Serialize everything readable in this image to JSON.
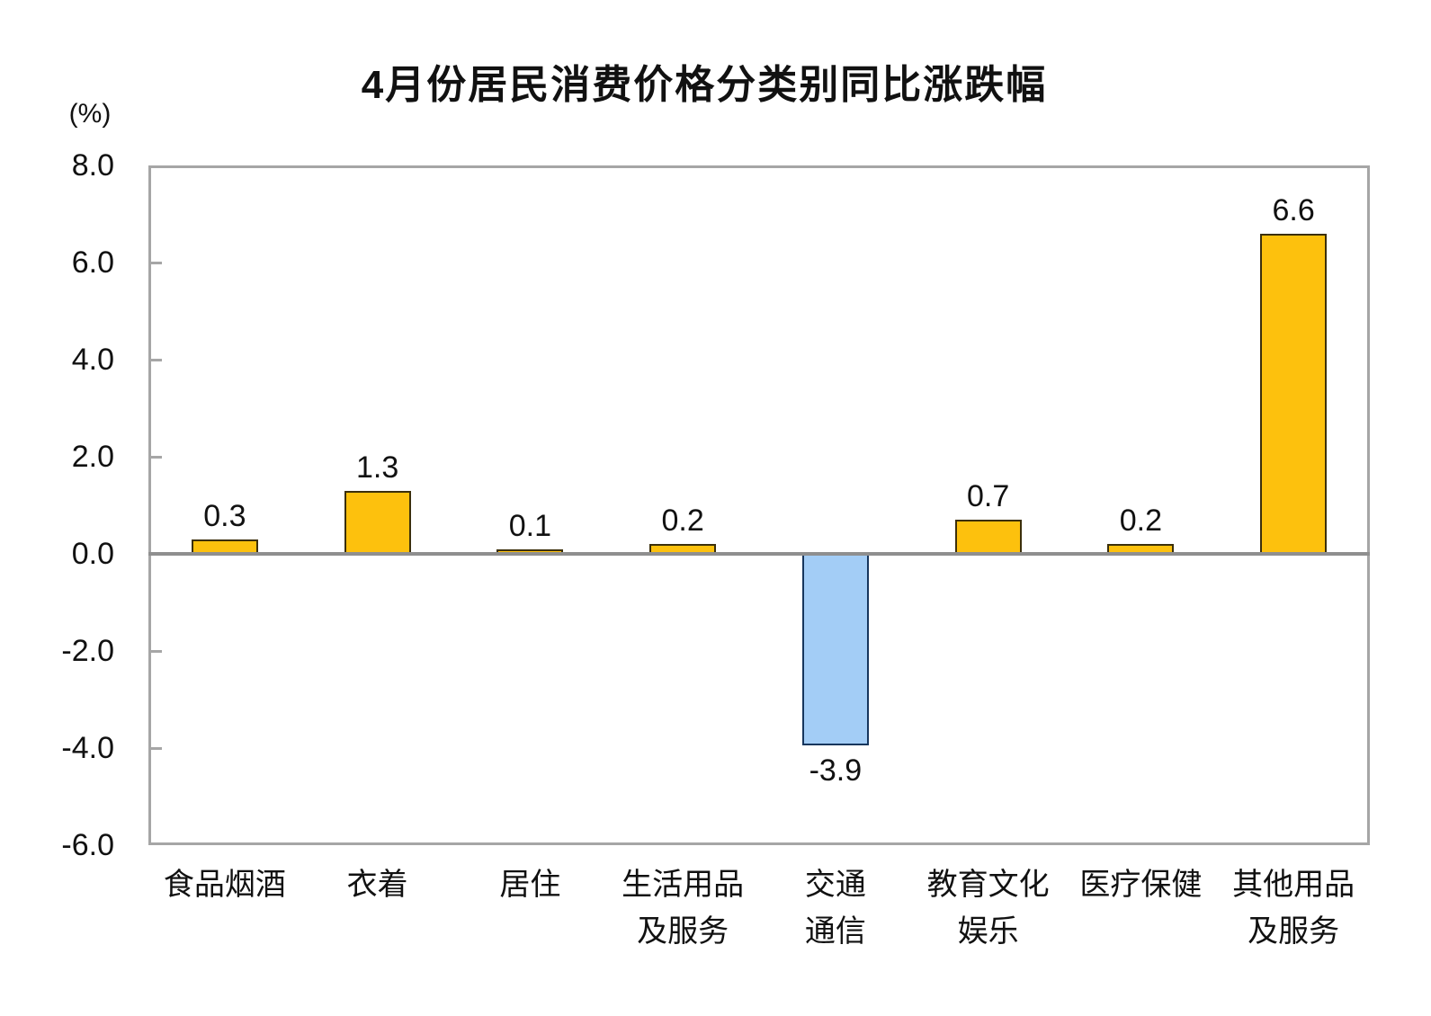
{
  "title": "4月份居民消费价格分类别同比涨跌幅",
  "chart_data": {
    "type": "bar",
    "title": "4月份居民消费价格分类别同比涨跌幅",
    "unit_label": "(%)",
    "categories": [
      "食品烟酒",
      "衣着",
      "居住",
      "生活用品及服务",
      "交通通信",
      "教育文化娱乐",
      "医疗保健",
      "其他用品及服务"
    ],
    "category_label_lines": [
      [
        "食品烟酒"
      ],
      [
        "衣着"
      ],
      [
        "居住"
      ],
      [
        "生活用品",
        "及服务"
      ],
      [
        "交通",
        "通信"
      ],
      [
        "教育文化",
        "娱乐"
      ],
      [
        "医疗保健"
      ],
      [
        "其他用品",
        "及服务"
      ]
    ],
    "values": [
      0.3,
      1.3,
      0.1,
      0.2,
      -3.9,
      0.7,
      0.2,
      6.6
    ],
    "value_labels": [
      "0.3",
      "1.3",
      "0.1",
      "0.2",
      "-3.9",
      "0.7",
      "0.2",
      "6.6"
    ],
    "ylim": [
      -6.0,
      8.0
    ],
    "ytick_step": 2.0,
    "ytick_labels": [
      "8.0",
      "6.0",
      "4.0",
      "2.0",
      "0.0",
      "-2.0",
      "-4.0",
      "-6.0"
    ],
    "ytick_values": [
      8.0,
      6.0,
      4.0,
      2.0,
      0.0,
      -2.0,
      -4.0,
      -6.0
    ],
    "grid": false,
    "legend": false,
    "colors": {
      "positive_fill": "#FDC10D",
      "positive_border": "#3B2F0B",
      "negative_fill": "#A3CDF6",
      "negative_border": "#17365D",
      "frame": "#A6A6A6",
      "zero_line": "#8F8F8F",
      "text": "#111111"
    }
  }
}
